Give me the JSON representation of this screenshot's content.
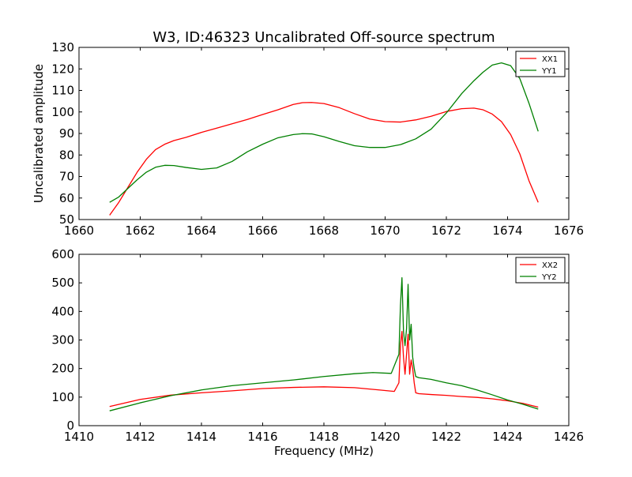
{
  "figure": {
    "title": "W3, ID:46323 Uncalibrated Off-source spectrum"
  },
  "colors": {
    "xx": "#ff0000",
    "yy": "#008000",
    "axes": "#000000",
    "background": "#ffffff"
  },
  "chart_data": [
    {
      "type": "line",
      "title": "W3, ID:46323 Uncalibrated Off-source spectrum",
      "xlabel": "",
      "ylabel": "Uncalibrated amplitude",
      "xlim": [
        1660,
        1676
      ],
      "ylim": [
        50,
        130
      ],
      "xticks": [
        1660,
        1662,
        1664,
        1666,
        1668,
        1670,
        1672,
        1674,
        1676
      ],
      "yticks": [
        50,
        60,
        70,
        80,
        90,
        100,
        110,
        120,
        130
      ],
      "grid": false,
      "legend_position": "top-right",
      "series": [
        {
          "name": "XX1",
          "color": "#ff0000",
          "x": [
            1661.0,
            1661.3,
            1661.6,
            1661.9,
            1662.2,
            1662.5,
            1662.8,
            1663.1,
            1663.5,
            1664.0,
            1664.5,
            1665.0,
            1665.5,
            1666.0,
            1666.5,
            1667.0,
            1667.3,
            1667.6,
            1668.0,
            1668.5,
            1669.0,
            1669.5,
            1670.0,
            1670.5,
            1671.0,
            1671.5,
            1672.0,
            1672.5,
            1672.9,
            1673.2,
            1673.5,
            1673.8,
            1674.1,
            1674.4,
            1674.7,
            1675.0
          ],
          "y": [
            52.0,
            58.0,
            65.0,
            72.0,
            78.0,
            82.5,
            85.0,
            86.7,
            88.2,
            90.5,
            92.5,
            94.5,
            96.5,
            98.8,
            101.0,
            103.5,
            104.3,
            104.4,
            103.9,
            102.0,
            99.2,
            96.7,
            95.5,
            95.3,
            96.3,
            98.0,
            100.2,
            101.5,
            101.8,
            101.0,
            99.0,
            95.5,
            89.5,
            80.5,
            68.0,
            58.0
          ]
        },
        {
          "name": "YY1",
          "color": "#008000",
          "x": [
            1661.0,
            1661.3,
            1661.6,
            1661.9,
            1662.2,
            1662.5,
            1662.8,
            1663.1,
            1663.5,
            1664.0,
            1664.5,
            1665.0,
            1665.5,
            1666.0,
            1666.5,
            1667.0,
            1667.3,
            1667.6,
            1668.0,
            1668.5,
            1669.0,
            1669.5,
            1670.0,
            1670.5,
            1671.0,
            1671.5,
            1672.0,
            1672.5,
            1672.9,
            1673.2,
            1673.5,
            1673.8,
            1674.1,
            1674.4,
            1674.7,
            1675.0
          ],
          "y": [
            58.0,
            60.5,
            64.5,
            68.5,
            72.0,
            74.3,
            75.2,
            75.1,
            74.2,
            73.3,
            74.0,
            77.0,
            81.5,
            85.0,
            88.0,
            89.5,
            89.9,
            89.8,
            88.5,
            86.3,
            84.3,
            83.5,
            83.5,
            84.8,
            87.5,
            92.0,
            99.5,
            108.5,
            114.5,
            118.5,
            121.8,
            122.8,
            121.5,
            115.5,
            104.0,
            91.0
          ]
        }
      ]
    },
    {
      "type": "line",
      "title": "",
      "xlabel": "Frequency (MHz)",
      "ylabel": "",
      "xlim": [
        1410,
        1426
      ],
      "ylim": [
        0,
        600
      ],
      "xticks": [
        1410,
        1412,
        1414,
        1416,
        1418,
        1420,
        1422,
        1424,
        1426
      ],
      "yticks": [
        0,
        100,
        200,
        300,
        400,
        500,
        600
      ],
      "grid": false,
      "legend_position": "top-right",
      "series": [
        {
          "name": "XX2",
          "color": "#ff0000",
          "x": [
            1411.0,
            1412.0,
            1413.0,
            1414.0,
            1415.0,
            1416.0,
            1417.0,
            1418.0,
            1419.0,
            1419.8,
            1420.3,
            1420.45,
            1420.5,
            1420.55,
            1420.6,
            1420.65,
            1420.7,
            1420.75,
            1420.8,
            1420.85,
            1420.9,
            1420.95,
            1421.0,
            1421.1,
            1421.5,
            1422.0,
            1422.5,
            1423.0,
            1423.5,
            1424.0,
            1424.5,
            1425.0
          ],
          "y": [
            67,
            92,
            107,
            115,
            122,
            130,
            134,
            136,
            133,
            125,
            120,
            150,
            280,
            330,
            240,
            180,
            250,
            320,
            180,
            230,
            200,
            150,
            115,
            112,
            109,
            106,
            102,
            99,
            94,
            87,
            78,
            65
          ]
        },
        {
          "name": "YY2",
          "color": "#008000",
          "x": [
            1411.0,
            1412.0,
            1413.0,
            1414.0,
            1415.0,
            1416.0,
            1417.0,
            1418.0,
            1419.0,
            1419.6,
            1420.2,
            1420.45,
            1420.5,
            1420.55,
            1420.6,
            1420.65,
            1420.7,
            1420.75,
            1420.8,
            1420.85,
            1420.9,
            1420.95,
            1421.0,
            1421.1,
            1421.5,
            1422.0,
            1422.5,
            1423.0,
            1423.5,
            1424.0,
            1424.5,
            1425.0
          ],
          "y": [
            52,
            80,
            105,
            125,
            140,
            150,
            160,
            172,
            182,
            186,
            183,
            250,
            420,
            518,
            330,
            280,
            340,
            495,
            300,
            355,
            240,
            200,
            172,
            168,
            162,
            150,
            140,
            125,
            108,
            90,
            75,
            58
          ]
        }
      ]
    }
  ]
}
